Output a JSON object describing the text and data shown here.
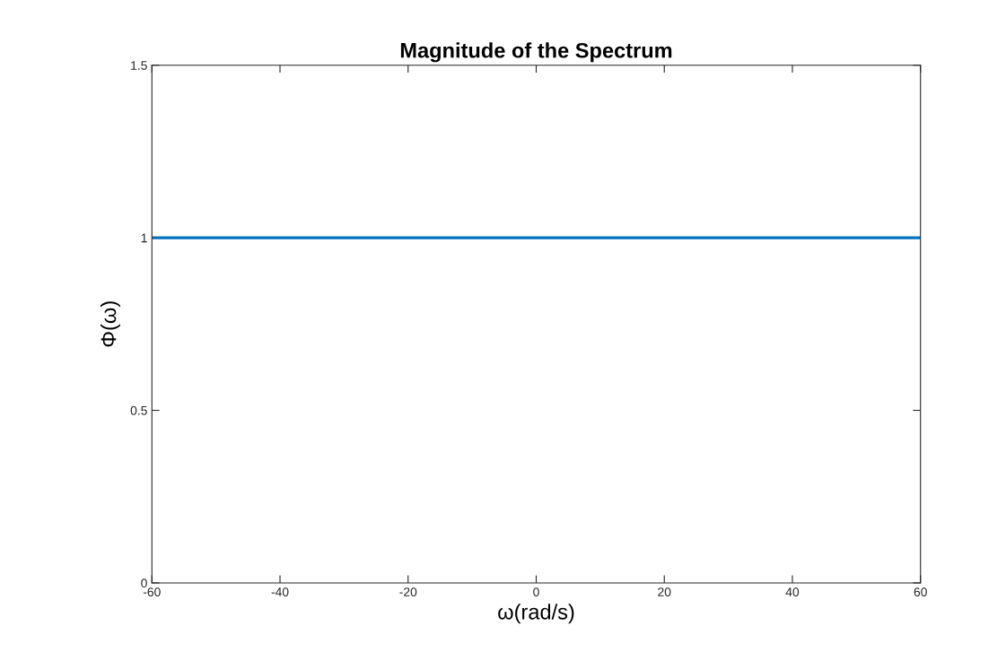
{
  "chart_data": {
    "type": "line",
    "title": "Magnitude of the Spectrum",
    "xlabel": "ω(rad/s)",
    "ylabel": "Φ(ω)",
    "x": [
      -60,
      60
    ],
    "series": [
      {
        "color": "#0072bd",
        "values": [
          1,
          1
        ]
      }
    ],
    "xlim": [
      -60,
      60
    ],
    "xticks": [
      -60,
      -40,
      -20,
      0,
      20,
      40,
      60
    ],
    "ylim": [
      0,
      1.5
    ],
    "yticks": [
      0,
      0.5,
      1,
      1.5
    ],
    "grid": false,
    "legend": false
  }
}
